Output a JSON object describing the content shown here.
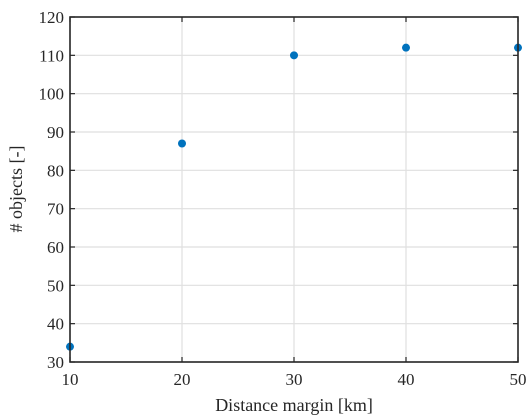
{
  "chart_data": {
    "type": "scatter",
    "title": "",
    "xlabel": "Distance margin [km]",
    "ylabel": "# objects [-]",
    "xlim": [
      10,
      50
    ],
    "ylim": [
      30,
      120
    ],
    "xticks": [
      10,
      20,
      30,
      40,
      50
    ],
    "yticks": [
      30,
      40,
      50,
      60,
      70,
      80,
      90,
      100,
      110,
      120
    ],
    "grid": true,
    "legend": "none",
    "series": [
      {
        "color": "#0072BD",
        "x": [
          10,
          20,
          30,
          40,
          50
        ],
        "y": [
          34,
          87,
          110,
          112,
          112
        ]
      }
    ]
  }
}
